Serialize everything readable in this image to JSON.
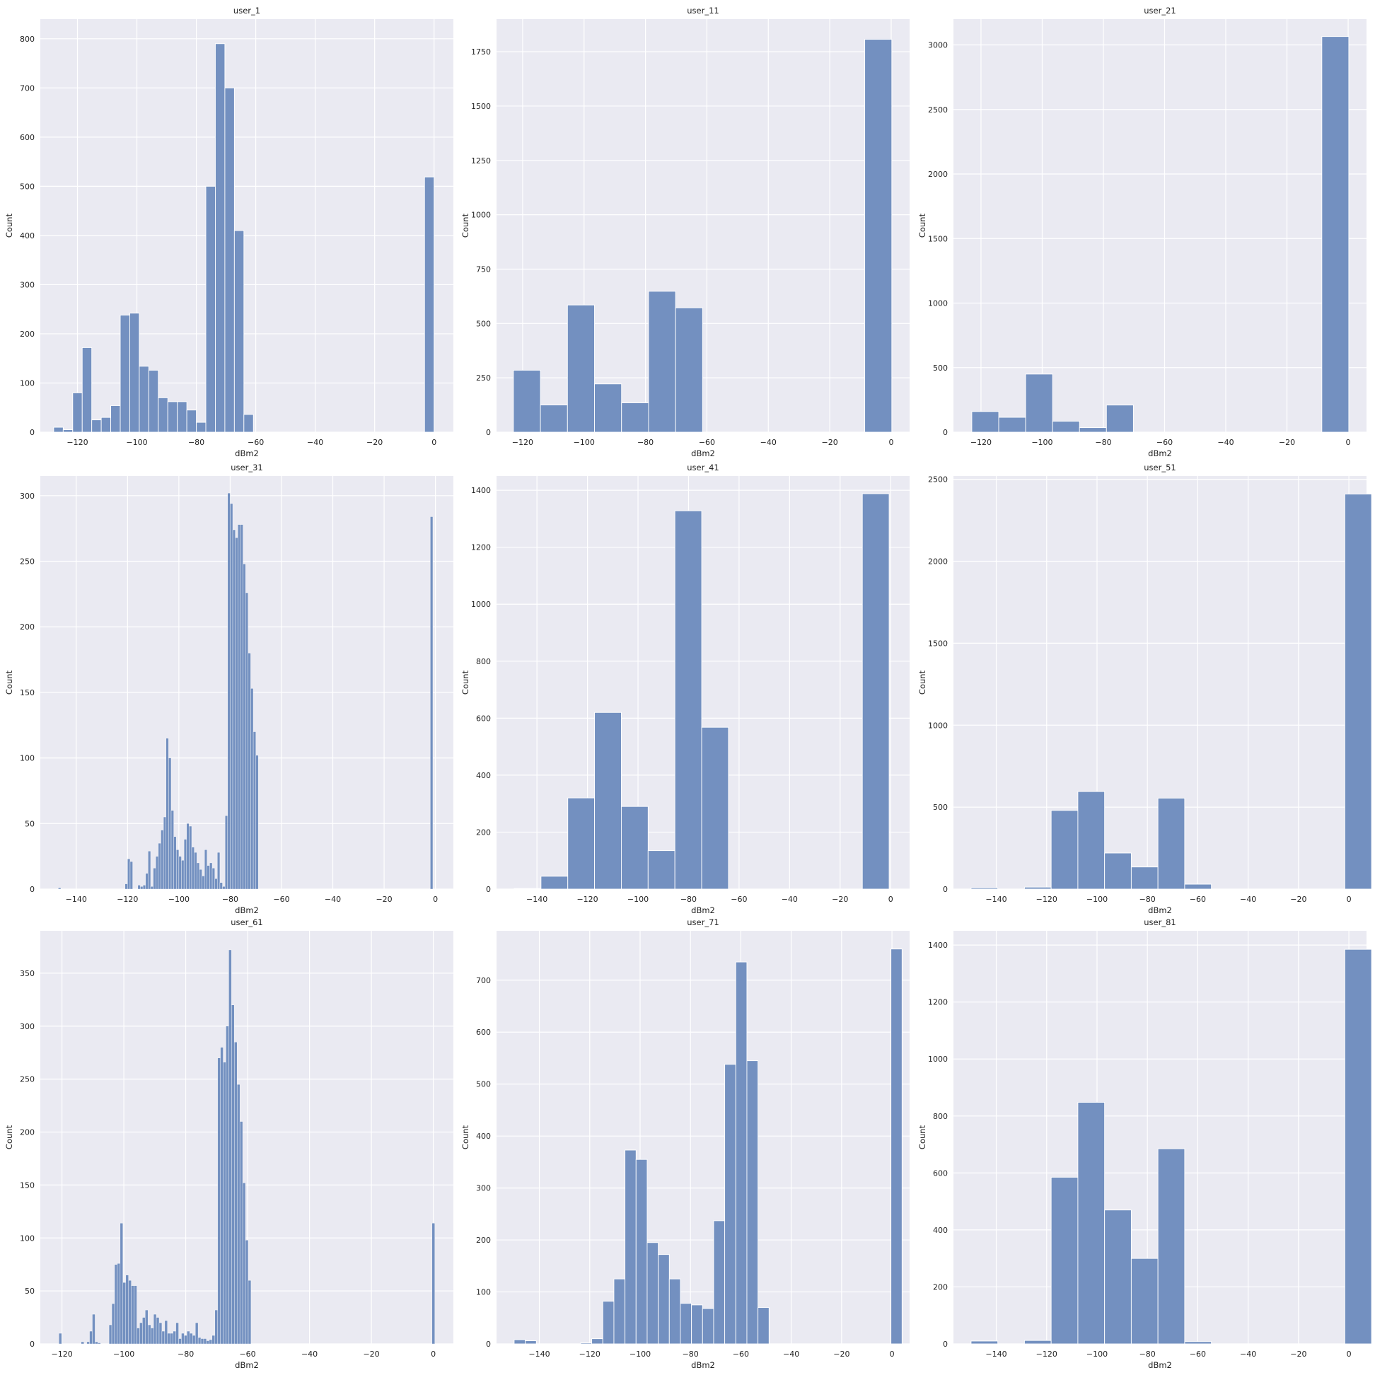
{
  "style": {
    "bar_fill": "#7390c0",
    "bar_edge": "#ffffff",
    "axes_bg": "#eaeaf2",
    "grid": "#ffffff"
  },
  "chart_data": [
    {
      "type": "bar",
      "title": "user_1",
      "xlabel": "dBm2",
      "ylabel": "Count",
      "xlim": [
        -132.5,
        6.5
      ],
      "ylim": [
        0,
        840
      ],
      "grid": true,
      "xticks": [
        -120,
        -100,
        -80,
        -60,
        -40,
        -20,
        0
      ],
      "yticks": [
        0,
        100,
        200,
        300,
        400,
        500,
        600,
        700,
        800
      ],
      "bin_start": -128,
      "bin_width": 3.2,
      "counts": [
        10,
        5,
        80,
        172,
        25,
        30,
        54,
        238,
        242,
        134,
        126,
        70,
        62,
        62,
        45,
        20,
        500,
        790,
        700,
        410,
        36,
        0,
        0,
        0,
        0,
        0,
        0,
        0,
        0,
        0,
        0,
        0,
        0,
        0,
        0,
        0,
        0,
        0,
        0,
        519
      ]
    },
    {
      "type": "bar",
      "title": "user_11",
      "xlabel": "dBm2",
      "ylabel": "Count",
      "xlim": [
        -128.5,
        6
      ],
      "ylim": [
        0,
        1900
      ],
      "grid": true,
      "xticks": [
        -120,
        -100,
        -80,
        -60,
        -40,
        -20,
        0
      ],
      "yticks": [
        0,
        250,
        500,
        750,
        1000,
        1250,
        1500,
        1750
      ],
      "bin_start": -123,
      "bin_width": 8.8,
      "counts": [
        285,
        125,
        585,
        222,
        135,
        648,
        572,
        0,
        0,
        0,
        0,
        0,
        0,
        1807
      ]
    },
    {
      "type": "bar",
      "title": "user_21",
      "xlabel": "dBm2",
      "ylabel": "Count",
      "xlim": [
        -129,
        6
      ],
      "ylim": [
        0,
        3200
      ],
      "grid": true,
      "xticks": [
        -120,
        -100,
        -80,
        -60,
        -40,
        -20,
        0
      ],
      "yticks": [
        0,
        500,
        1000,
        1500,
        2000,
        2500,
        3000
      ],
      "bin_start": -123,
      "bin_width": 8.8,
      "counts": [
        160,
        115,
        450,
        85,
        35,
        210,
        0,
        0,
        0,
        0,
        0,
        0,
        0,
        3065
      ]
    },
    {
      "type": "bar",
      "title": "user_31",
      "xlabel": "dBm2",
      "ylabel": "Count",
      "xlim": [
        -154,
        7
      ],
      "ylim": [
        0,
        315
      ],
      "grid": true,
      "xticks": [
        -140,
        -120,
        -100,
        -80,
        -60,
        -40,
        -20,
        0
      ],
      "yticks": [
        0,
        50,
        100,
        150,
        200,
        250,
        300
      ],
      "bin_start": -147,
      "bin_width": 1,
      "counts": [
        1,
        0,
        0,
        0,
        0,
        0,
        0,
        0,
        0,
        0,
        0,
        0,
        0,
        0,
        0,
        0,
        0,
        0,
        0,
        0,
        0,
        0,
        0,
        0,
        0,
        0,
        4,
        23,
        21,
        0,
        0,
        3,
        2,
        3,
        12,
        29,
        2,
        16,
        25,
        35,
        45,
        55,
        115,
        100,
        60,
        40,
        30,
        25,
        22,
        38,
        50,
        48,
        32,
        28,
        20,
        15,
        10,
        30,
        18,
        20,
        16,
        8,
        28,
        5,
        2,
        56,
        302,
        294,
        274,
        268,
        278,
        278,
        248,
        226,
        180,
        153,
        120,
        102,
        0,
        0,
        0,
        0,
        0,
        0,
        0,
        0,
        0,
        0,
        0,
        0,
        0,
        0,
        0,
        0,
        0,
        0,
        0,
        0,
        0,
        0,
        0,
        0,
        0,
        0,
        0,
        0,
        0,
        0,
        0,
        0,
        0,
        0,
        0,
        0,
        0,
        0,
        0,
        0,
        0,
        0,
        0,
        0,
        0,
        0,
        0,
        0,
        0,
        0,
        0,
        0,
        0,
        0,
        0,
        0,
        0,
        0,
        0,
        0,
        0,
        0,
        0,
        0,
        0,
        0,
        0,
        284
      ]
    },
    {
      "type": "bar",
      "title": "user_41",
      "xlabel": "dBm2",
      "ylabel": "Count",
      "xlim": [
        -156,
        7.5
      ],
      "ylim": [
        0,
        1450
      ],
      "grid": true,
      "xticks": [
        -140,
        -120,
        -100,
        -80,
        -60,
        -40,
        -20,
        0
      ],
      "yticks": [
        0,
        200,
        400,
        600,
        800,
        1000,
        1200,
        1400
      ],
      "bin_start": -149,
      "bin_width": 10.6,
      "counts": [
        2,
        45,
        320,
        620,
        290,
        135,
        1328,
        568,
        0,
        0,
        0,
        0,
        0,
        1388
      ]
    },
    {
      "type": "bar",
      "title": "user_51",
      "xlabel": "dBm2",
      "ylabel": "Count",
      "xlim": [
        -157,
        7
      ],
      "ylim": [
        0,
        2520
      ],
      "grid": true,
      "xticks": [
        -140,
        -120,
        -100,
        -80,
        -60,
        -40,
        -20,
        0
      ],
      "yticks": [
        0,
        500,
        1000,
        1500,
        2000,
        2500
      ],
      "bin_start": -150,
      "bin_width": 10.6,
      "counts": [
        8,
        0,
        12,
        480,
        595,
        220,
        135,
        555,
        30,
        0,
        0,
        0,
        0,
        0,
        2410
      ]
    },
    {
      "type": "bar",
      "title": "user_61",
      "xlabel": "dBm2",
      "ylabel": "Count",
      "xlim": [
        -127,
        6.5
      ],
      "ylim": [
        0,
        390
      ],
      "grid": true,
      "xticks": [
        -120,
        -100,
        -80,
        -60,
        -40,
        -20,
        0
      ],
      "yticks": [
        0,
        50,
        100,
        150,
        200,
        250,
        300,
        350
      ],
      "bin_start": -121,
      "bin_width": 0.9,
      "counts": [
        10,
        0,
        0,
        0,
        0,
        0,
        0,
        0,
        2,
        0,
        2,
        12,
        28,
        2,
        1,
        0,
        0,
        0,
        18,
        38,
        75,
        76,
        114,
        58,
        65,
        60,
        55,
        55,
        15,
        20,
        25,
        32,
        18,
        15,
        28,
        25,
        20,
        12,
        22,
        10,
        10,
        12,
        20,
        5,
        10,
        8,
        12,
        10,
        8,
        20,
        6,
        5,
        5,
        3,
        4,
        8,
        32,
        270,
        280,
        266,
        300,
        372,
        320,
        285,
        245,
        210,
        152,
        98,
        60,
        0,
        0,
        0,
        0,
        0,
        0,
        0,
        0,
        0,
        0,
        0,
        0,
        0,
        0,
        0,
        0,
        0,
        0,
        0,
        0,
        0,
        0,
        0,
        0,
        0,
        0,
        0,
        0,
        0,
        0,
        0,
        0,
        0,
        0,
        0,
        0,
        0,
        0,
        0,
        0,
        0,
        0,
        0,
        0,
        0,
        0,
        0,
        0,
        0,
        0,
        0,
        0,
        0,
        0,
        0,
        0,
        0,
        0,
        0,
        0,
        0,
        0,
        0,
        0,
        0,
        114
      ]
    },
    {
      "type": "bar",
      "title": "user_71",
      "xlabel": "dBm2",
      "ylabel": "Count",
      "xlim": [
        -157,
        7
      ],
      "ylim": [
        0,
        795
      ],
      "grid": true,
      "xticks": [
        -140,
        -120,
        -100,
        -80,
        -60,
        -40,
        -20,
        0
      ],
      "yticks": [
        0,
        100,
        200,
        300,
        400,
        500,
        600,
        700
      ],
      "bin_start": -150,
      "bin_width": 4.4,
      "counts": [
        8,
        6,
        0,
        0,
        0,
        0,
        2,
        10,
        82,
        125,
        373,
        355,
        195,
        172,
        125,
        78,
        75,
        68,
        237,
        538,
        735,
        545,
        70,
        0,
        0,
        0,
        0,
        0,
        0,
        0,
        0,
        0,
        0,
        0,
        760
      ]
    },
    {
      "type": "bar",
      "title": "user_81",
      "xlabel": "dBm2",
      "ylabel": "Count",
      "xlim": [
        -157,
        7
      ],
      "ylim": [
        0,
        1450
      ],
      "grid": true,
      "xticks": [
        -140,
        -120,
        -100,
        -80,
        -60,
        -40,
        -20,
        0
      ],
      "yticks": [
        0,
        200,
        400,
        600,
        800,
        1000,
        1200,
        1400
      ],
      "bin_start": -150,
      "bin_width": 10.6,
      "counts": [
        10,
        0,
        12,
        585,
        848,
        470,
        300,
        685,
        8,
        0,
        0,
        0,
        0,
        0,
        1385
      ]
    }
  ]
}
